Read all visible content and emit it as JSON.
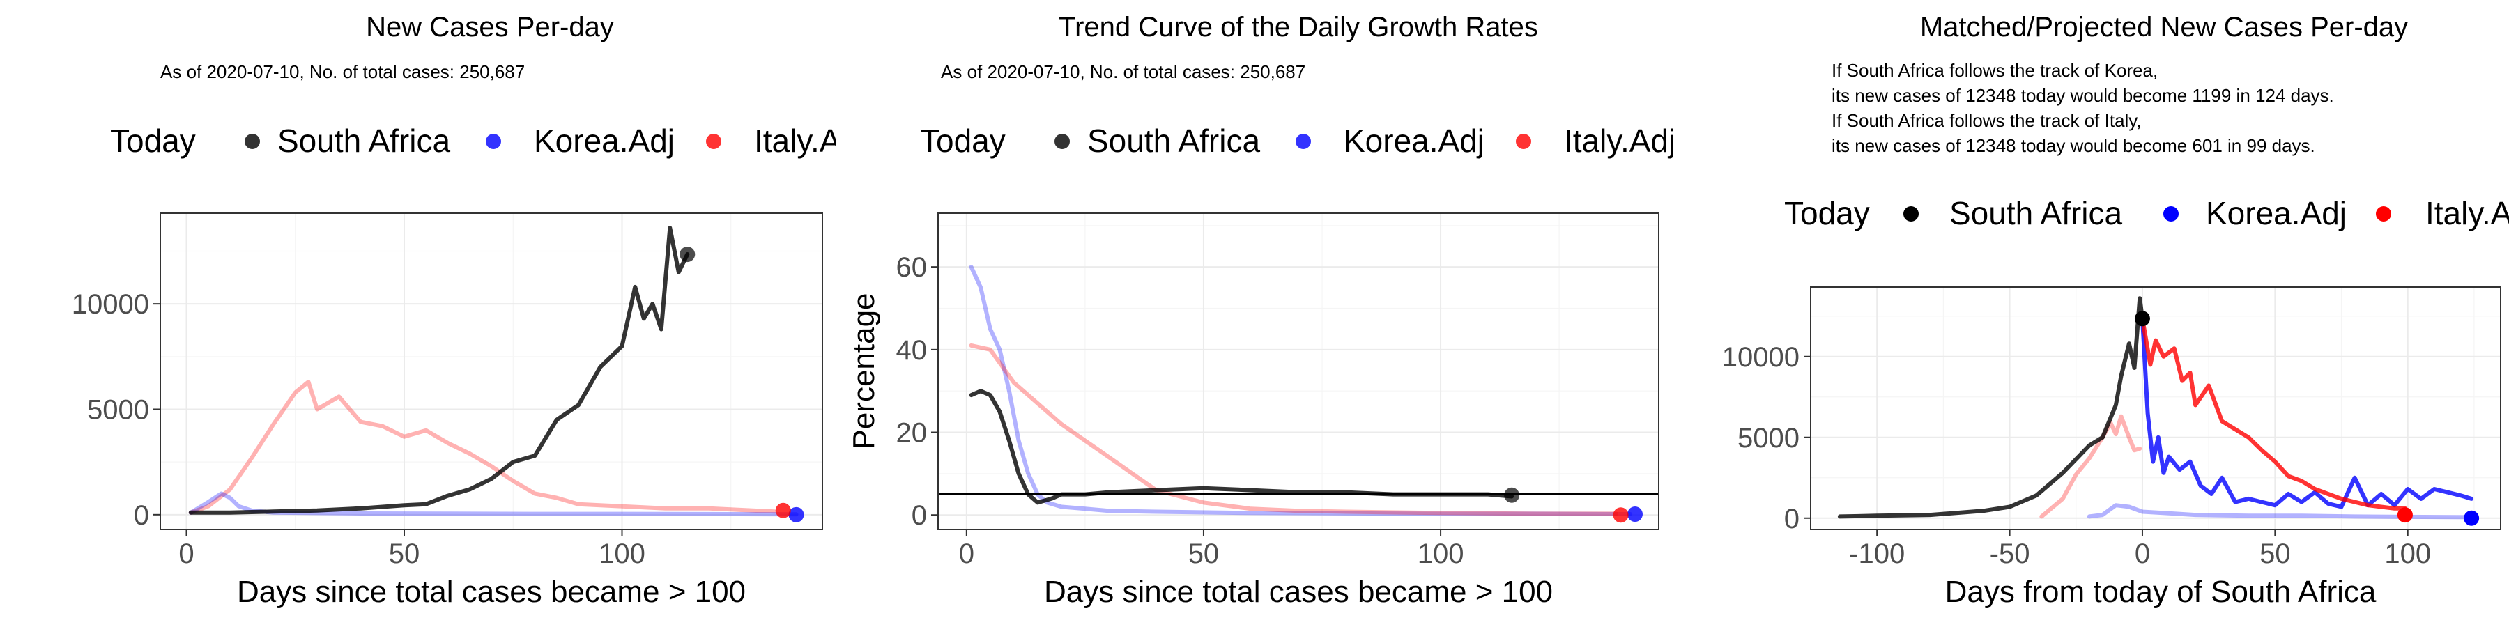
{
  "legend": {
    "title": "Today",
    "entries": [
      {
        "label": "South Africa",
        "color": "#000000"
      },
      {
        "label": "Korea.Adj",
        "color": "#0000ff"
      },
      {
        "label": "Italy.Adj",
        "color": "#ff0000"
      }
    ]
  },
  "chart_data": [
    {
      "type": "line",
      "title": "New Cases Per-day",
      "subtitle": "As of 2020-07-10, No. of total cases: 250,687",
      "xlabel": "Days since total cases became > 100",
      "ylabel": "",
      "xlim": [
        -6,
        146
      ],
      "ylim": [
        -700,
        14300
      ],
      "xticks": [
        0,
        50,
        100
      ],
      "yticks": [
        0,
        5000,
        10000
      ],
      "ytick_labels": [
        "0",
        "5000",
        "10000"
      ],
      "hline": null,
      "series": [
        {
          "name": "Italy.Adj",
          "color": "#ff0000",
          "alpha": 0.3,
          "x": [
            1,
            5,
            10,
            15,
            20,
            25,
            28,
            30,
            35,
            40,
            45,
            50,
            55,
            60,
            65,
            70,
            75,
            80,
            85,
            90,
            100,
            110,
            120,
            130,
            135
          ],
          "y": [
            100,
            400,
            1200,
            2700,
            4300,
            5800,
            6300,
            5000,
            5600,
            4400,
            4200,
            3700,
            4000,
            3400,
            2900,
            2300,
            1600,
            1000,
            800,
            500,
            400,
            300,
            300,
            200,
            150
          ]
        },
        {
          "name": "Korea.Adj",
          "color": "#0000ff",
          "alpha": 0.3,
          "x": [
            1,
            5,
            8,
            10,
            12,
            15,
            20,
            30,
            40,
            60,
            80,
            100,
            120,
            140
          ],
          "y": [
            100,
            600,
            1000,
            800,
            400,
            200,
            100,
            80,
            60,
            50,
            40,
            40,
            30,
            20
          ]
        },
        {
          "name": "South Africa",
          "color": "#000000",
          "alpha": 0.8,
          "x": [
            1,
            10,
            20,
            30,
            40,
            50,
            55,
            60,
            65,
            70,
            75,
            80,
            85,
            90,
            95,
            100,
            103,
            105,
            107,
            109,
            111,
            113,
            115
          ],
          "y": [
            100,
            100,
            150,
            200,
            300,
            450,
            500,
            900,
            1200,
            1700,
            2500,
            2800,
            4500,
            5200,
            7000,
            8000,
            10800,
            9300,
            10000,
            8800,
            13600,
            11500,
            12350
          ]
        }
      ],
      "points": [
        {
          "series": "South Africa",
          "x": 115,
          "y": 12348,
          "color": "#000000",
          "alpha": 0.7
        },
        {
          "series": "Korea.Adj",
          "x": 140,
          "y": 0,
          "color": "#0000ff",
          "alpha": 0.8
        },
        {
          "series": "Italy.Adj",
          "x": 137,
          "y": 200,
          "color": "#ff0000",
          "alpha": 0.8
        }
      ]
    },
    {
      "type": "line",
      "title": "Trend Curve of the Daily Growth Rates",
      "subtitle": "As of 2020-07-10, No. of total cases: 250,687",
      "xlabel": "Days since total cases became > 100",
      "ylabel": "Percentage",
      "xlim": [
        -6,
        146
      ],
      "ylim": [
        -3.5,
        73
      ],
      "xticks": [
        0,
        50,
        100
      ],
      "yticks": [
        0,
        20,
        40,
        60
      ],
      "ytick_labels": [
        "0",
        "20",
        "40",
        "60"
      ],
      "hline": 5,
      "series": [
        {
          "name": "Korea.Adj",
          "color": "#0000ff",
          "alpha": 0.3,
          "x": [
            1,
            3,
            5,
            7,
            9,
            11,
            13,
            15,
            17,
            20,
            25,
            30,
            40,
            60,
            80,
            100,
            120,
            140
          ],
          "y": [
            60,
            55,
            45,
            40,
            30,
            18,
            10,
            5,
            3,
            2,
            1.5,
            1,
            0.8,
            0.5,
            0.4,
            0.3,
            0.3,
            0.2
          ]
        },
        {
          "name": "Italy.Adj",
          "color": "#ff0000",
          "alpha": 0.3,
          "x": [
            1,
            5,
            10,
            15,
            20,
            25,
            30,
            35,
            40,
            50,
            60,
            70,
            80,
            100,
            120,
            137
          ],
          "y": [
            41,
            40,
            32,
            27,
            22,
            18,
            14,
            10,
            6,
            3,
            1.5,
            1,
            0.8,
            0.5,
            0.3,
            0.3
          ]
        },
        {
          "name": "South Africa",
          "color": "#000000",
          "alpha": 0.8,
          "x": [
            1,
            3,
            5,
            7,
            9,
            11,
            13,
            15,
            18,
            20,
            25,
            30,
            40,
            50,
            60,
            70,
            80,
            90,
            100,
            110,
            115
          ],
          "y": [
            29,
            30,
            29,
            25,
            18,
            10,
            5,
            3,
            4,
            5,
            5,
            5.5,
            6,
            6.5,
            6,
            5.5,
            5.5,
            5,
            5,
            5,
            4.5
          ]
        }
      ],
      "points": [
        {
          "series": "South Africa",
          "x": 115,
          "y": 4.8,
          "color": "#000000",
          "alpha": 0.7
        },
        {
          "series": "Korea.Adj",
          "x": 141,
          "y": 0.2,
          "color": "#0000ff",
          "alpha": 0.8
        },
        {
          "series": "Italy.Adj",
          "x": 138,
          "y": 0,
          "color": "#ff0000",
          "alpha": 0.8
        }
      ]
    },
    {
      "type": "line",
      "title": "Matched/Projected New Cases Per-day",
      "subtitle_lines": [
        "If South Africa follows the track of Korea,",
        "its new cases of 12348 today would become 1199 in 124 days.",
        "If South Africa follows the track of Italy,",
        "its new cases of 12348 today would become 601 in 99 days."
      ],
      "xlabel": "Days from today of South Africa",
      "ylabel": "",
      "xlim": [
        -125,
        135
      ],
      "ylim": [
        -700,
        14300
      ],
      "xticks": [
        -100,
        -50,
        0,
        50,
        100
      ],
      "yticks": [
        0,
        5000,
        10000
      ],
      "ytick_labels": [
        "0",
        "5000",
        "10000"
      ],
      "hline": null,
      "series": [
        {
          "name": "Italy.Adj (matched)",
          "color": "#ff0000",
          "alpha": 0.3,
          "x": [
            -38,
            -30,
            -25,
            -20,
            -15,
            -12,
            -10,
            -8,
            -5,
            -3,
            -1
          ],
          "y": [
            100,
            1200,
            2700,
            3700,
            5000,
            5900,
            5200,
            6300,
            5000,
            4200,
            4300
          ]
        },
        {
          "name": "Korea.Adj (matched)",
          "color": "#0000ff",
          "alpha": 0.3,
          "x": [
            -20,
            -15,
            -10,
            -5,
            0,
            10,
            20,
            40,
            60,
            80,
            100,
            124
          ],
          "y": [
            100,
            200,
            800,
            700,
            400,
            300,
            200,
            150,
            150,
            100,
            80,
            60
          ]
        },
        {
          "name": "South Africa",
          "color": "#000000",
          "alpha": 0.8,
          "x": [
            -114,
            -100,
            -80,
            -60,
            -50,
            -40,
            -30,
            -20,
            -15,
            -10,
            -8,
            -5,
            -3,
            -1,
            0
          ],
          "y": [
            100,
            150,
            200,
            450,
            700,
            1400,
            2800,
            4500,
            5000,
            7000,
            8800,
            10800,
            9300,
            13600,
            12348
          ]
        },
        {
          "name": "Korea.Adj (projected)",
          "color": "#0000ff",
          "alpha": 0.8,
          "x": [
            0,
            2,
            4,
            6,
            8,
            10,
            14,
            18,
            22,
            26,
            30,
            35,
            40,
            45,
            50,
            55,
            60,
            65,
            70,
            75,
            80,
            85,
            90,
            95,
            100,
            105,
            110,
            115,
            120,
            124
          ],
          "y": [
            12348,
            6500,
            3500,
            5000,
            2800,
            3800,
            3000,
            3500,
            2000,
            1500,
            2500,
            1000,
            1200,
            1000,
            800,
            1500,
            1000,
            1600,
            900,
            700,
            2500,
            800,
            1500,
            800,
            1800,
            1200,
            1800,
            1600,
            1400,
            1199
          ]
        },
        {
          "name": "Italy.Adj (projected)",
          "color": "#ff0000",
          "alpha": 0.8,
          "x": [
            0,
            3,
            5,
            8,
            12,
            15,
            18,
            20,
            25,
            30,
            35,
            40,
            45,
            50,
            55,
            60,
            65,
            70,
            75,
            80,
            85,
            90,
            95,
            99
          ],
          "y": [
            12348,
            9500,
            11000,
            10000,
            10500,
            8500,
            9000,
            7000,
            8200,
            6000,
            5500,
            5000,
            4200,
            3500,
            2600,
            2300,
            1800,
            1500,
            1200,
            1000,
            800,
            700,
            600,
            601
          ]
        }
      ],
      "points": [
        {
          "series": "South Africa",
          "x": 0,
          "y": 12348,
          "color": "#000000",
          "alpha": 1
        },
        {
          "series": "Korea.Adj",
          "x": 124,
          "y": 0,
          "color": "#0000ff",
          "alpha": 1
        },
        {
          "series": "Italy.Adj",
          "x": 99,
          "y": 200,
          "color": "#ff0000",
          "alpha": 1
        }
      ]
    }
  ]
}
